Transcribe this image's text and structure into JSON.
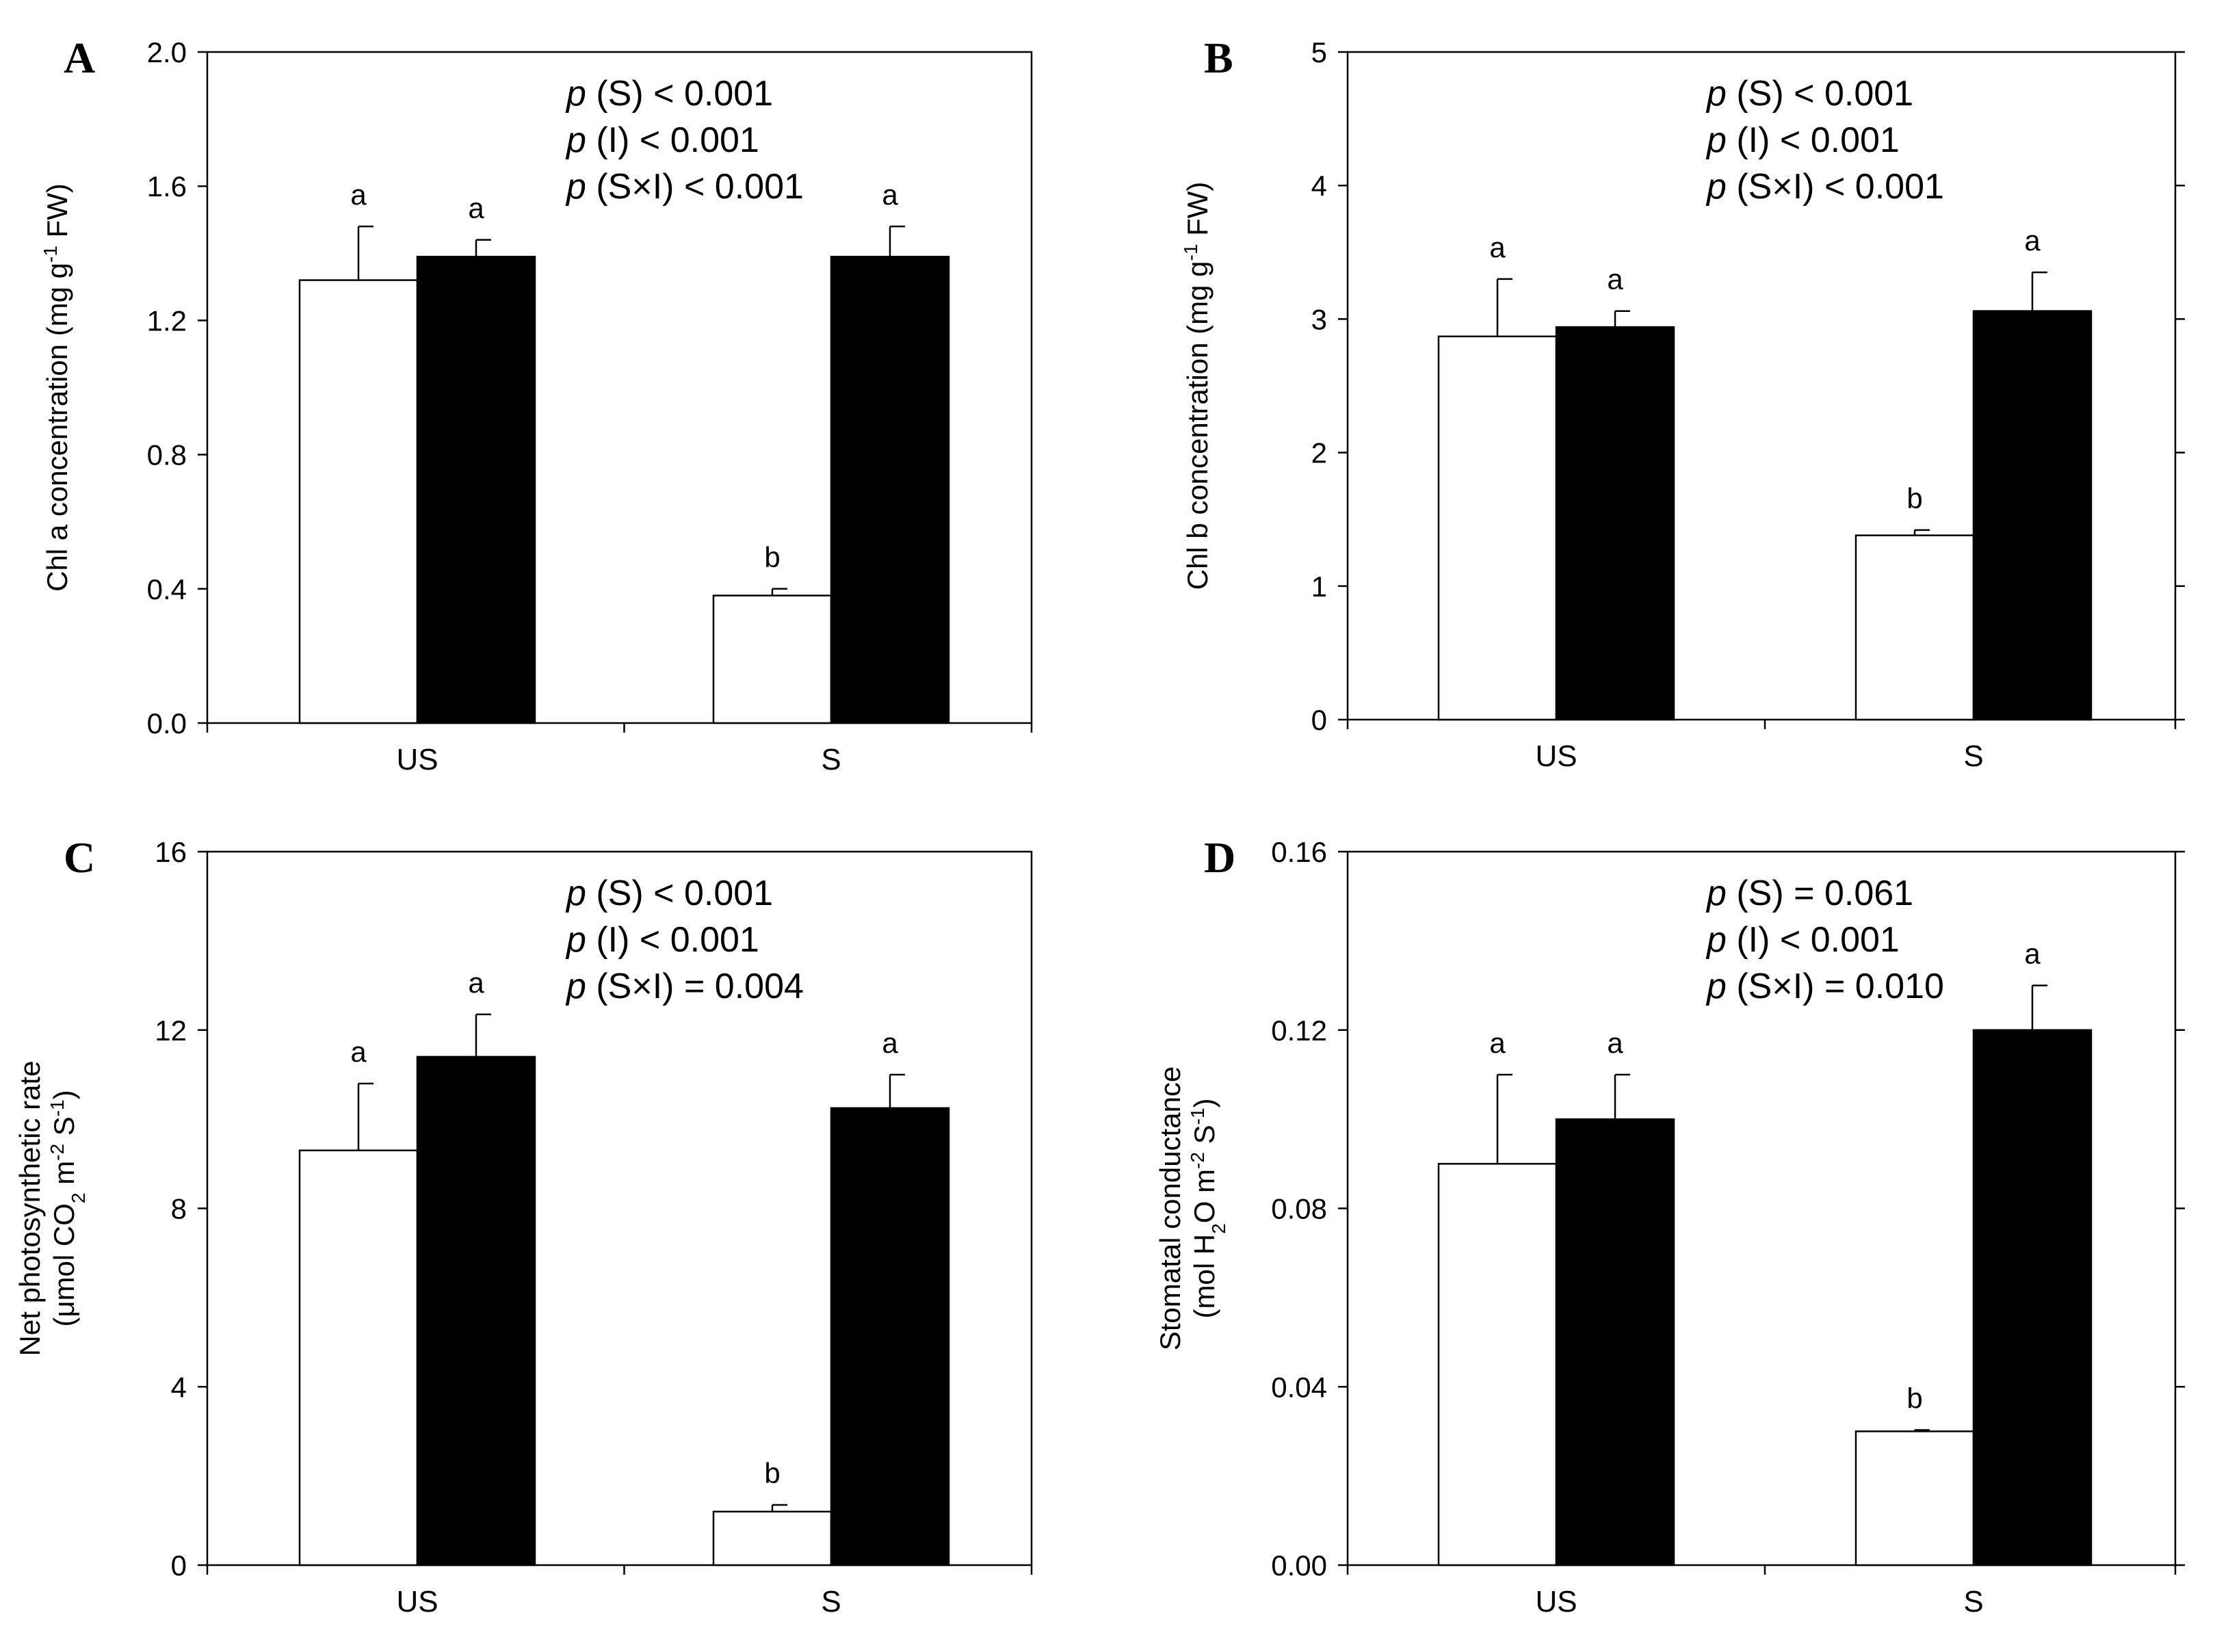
{
  "chart_data": [
    {
      "type": "bar",
      "panel": "A",
      "ylabel": [
        "Chl a concentration (mg g",
        "-1",
        " FW)"
      ],
      "ylim": [
        0,
        2.0
      ],
      "yticks": [
        "0.0",
        "0.4",
        "0.8",
        "1.2",
        "1.6",
        "2.0"
      ],
      "categories": [
        "US",
        "S"
      ],
      "series": [
        {
          "name": "open bars",
          "color": "#ffffff",
          "values": [
            1.32,
            0.38
          ],
          "errors": [
            0.16,
            0.02
          ],
          "letters": [
            "a",
            "b"
          ]
        },
        {
          "name": "filled bars",
          "color": "#000000",
          "values": [
            1.39,
            1.39
          ],
          "errors": [
            0.05,
            0.09
          ],
          "letters": [
            "a",
            "a"
          ]
        }
      ],
      "stats": [
        {
          "p": "p",
          "term": " (S) ",
          "op": "<",
          "value": " 0.001"
        },
        {
          "p": "p",
          "term": " (I) ",
          "op": "<",
          "value": " 0.001"
        },
        {
          "p": "p",
          "term": " (S×I) ",
          "op": "<",
          "value": " 0.001"
        }
      ]
    },
    {
      "type": "bar",
      "panel": "B",
      "ylabel": [
        "Chl b concentration (mg g",
        "-1",
        " FW)"
      ],
      "ylim": [
        0,
        5
      ],
      "yticks": [
        "0",
        "1",
        "2",
        "3",
        "4",
        "5"
      ],
      "categories": [
        "US",
        "S"
      ],
      "series": [
        {
          "name": "open bars",
          "color": "#ffffff",
          "values": [
            2.87,
            1.38
          ],
          "errors": [
            0.43,
            0.04
          ],
          "letters": [
            "a",
            "b"
          ]
        },
        {
          "name": "filled bars",
          "color": "#000000",
          "values": [
            2.94,
            3.06
          ],
          "errors": [
            0.12,
            0.29
          ],
          "letters": [
            "a",
            "a"
          ]
        }
      ],
      "stats": [
        {
          "p": "p",
          "term": " (S) ",
          "op": "<",
          "value": " 0.001"
        },
        {
          "p": "p",
          "term": " (I) ",
          "op": "<",
          "value": " 0.001"
        },
        {
          "p": "p",
          "term": " (S×I) ",
          "op": "<",
          "value": " 0.001"
        }
      ]
    },
    {
      "type": "bar",
      "panel": "C",
      "ylabel_line1": "Net photosynthetic rate",
      "ylabel": [
        "(μmol CO",
        "2",
        " m",
        "-2",
        " S",
        "-1",
        ")"
      ],
      "ylim": [
        0,
        16
      ],
      "yticks": [
        "0",
        "4",
        "8",
        "12",
        "16"
      ],
      "categories": [
        "US",
        "S"
      ],
      "series": [
        {
          "name": "open bars",
          "color": "#ffffff",
          "values": [
            9.3,
            1.2
          ],
          "errors": [
            1.5,
            0.15
          ],
          "letters": [
            "a",
            "b"
          ]
        },
        {
          "name": "filled bars",
          "color": "#000000",
          "values": [
            11.4,
            10.25
          ],
          "errors": [
            0.95,
            0.75
          ],
          "letters": [
            "a",
            "a"
          ]
        }
      ],
      "stats": [
        {
          "p": "p",
          "term": " (S) ",
          "op": "<",
          "value": " 0.001"
        },
        {
          "p": "p",
          "term": " (I) ",
          "op": "<",
          "value": " 0.001"
        },
        {
          "p": "p",
          "term": " (S×I) ",
          "op": "=",
          "value": " 0.004"
        }
      ]
    },
    {
      "type": "bar",
      "panel": "D",
      "ylabel_line1": "Stomatal conductance",
      "ylabel": [
        "(mol H",
        "2",
        "O m",
        "-2",
        " S",
        "-1",
        ")"
      ],
      "ylim": [
        0,
        0.16
      ],
      "yticks": [
        "0.00",
        "0.04",
        "0.08",
        "0.12",
        "0.16"
      ],
      "categories": [
        "US",
        "S"
      ],
      "series": [
        {
          "name": "open bars",
          "color": "#ffffff",
          "values": [
            0.09,
            0.03
          ],
          "errors": [
            0.02,
            0.0003
          ],
          "letters": [
            "a",
            "b"
          ]
        },
        {
          "name": "filled bars",
          "color": "#000000",
          "values": [
            0.1,
            0.12
          ],
          "errors": [
            0.01,
            0.01
          ],
          "letters": [
            "a",
            "a"
          ]
        }
      ],
      "stats": [
        {
          "p": "p",
          "term": " (S) ",
          "op": "=",
          "value": " 0.061"
        },
        {
          "p": "p",
          "term": " (I) ",
          "op": "<",
          "value": " 0.001"
        },
        {
          "p": "p",
          "term": " (S×I) ",
          "op": "=",
          "value": " 0.010"
        }
      ]
    }
  ]
}
